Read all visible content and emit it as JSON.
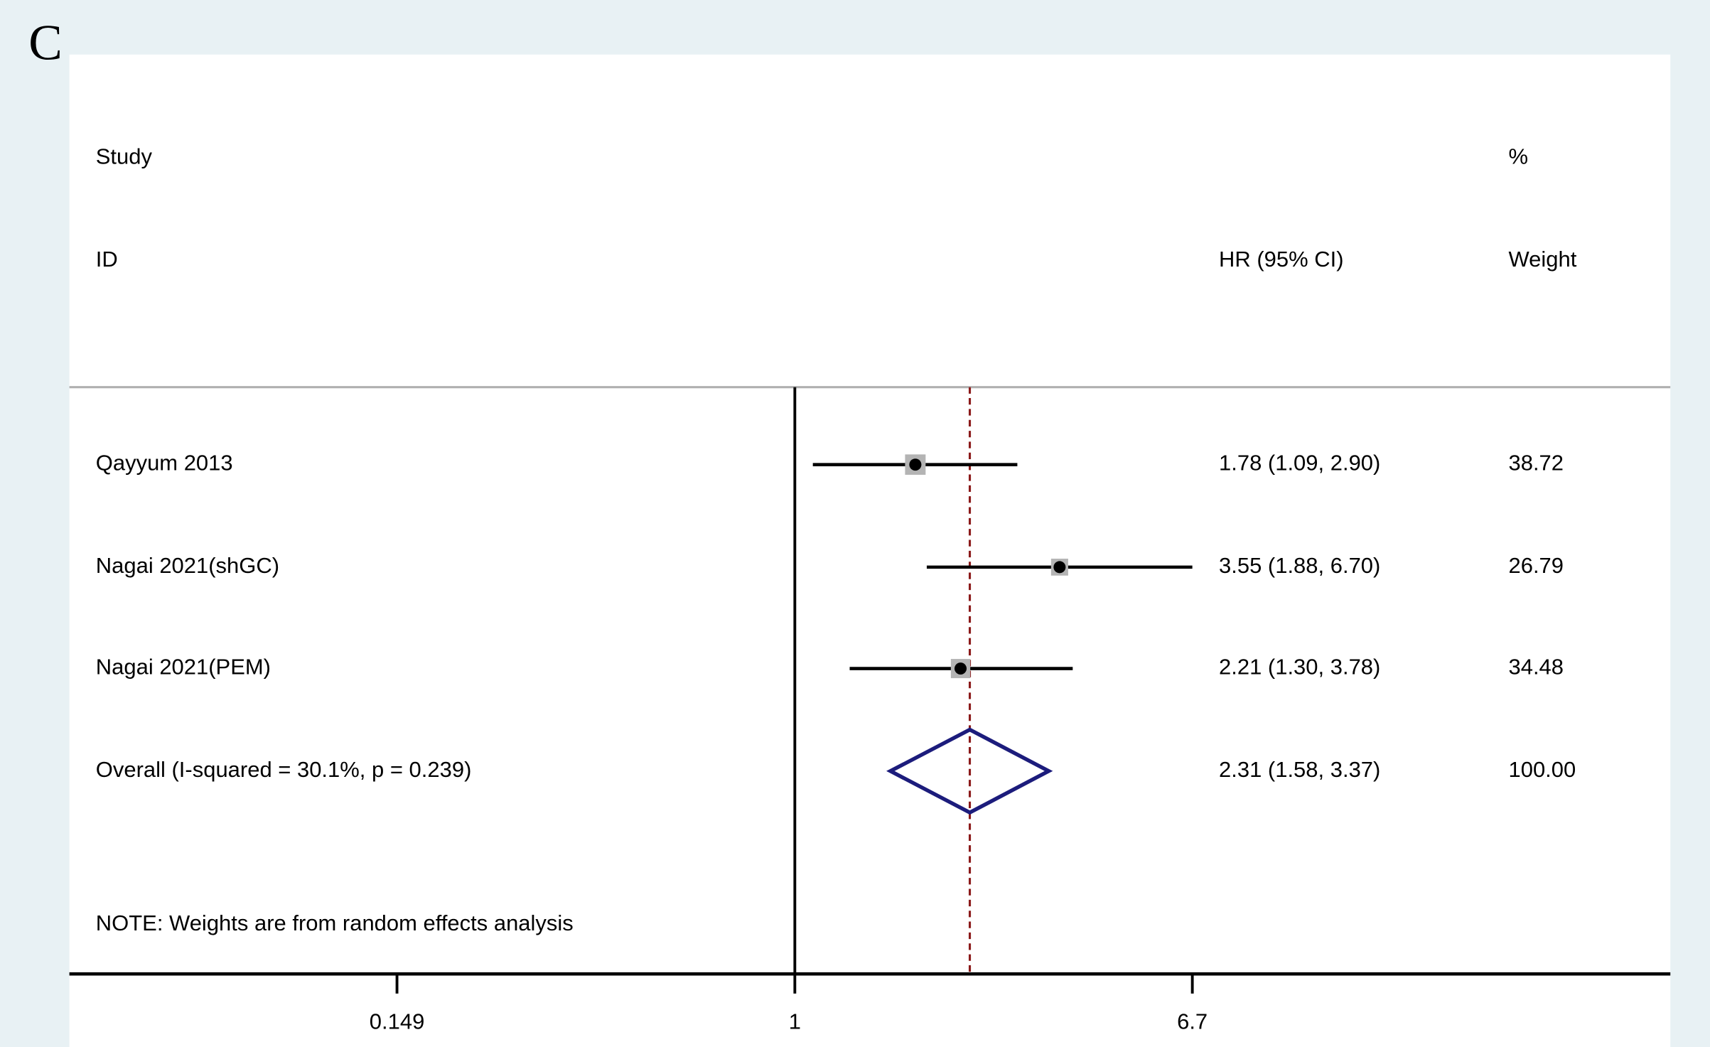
{
  "chart_data": {
    "type": "forest",
    "panel_label": "C",
    "header": {
      "study": "Study",
      "id": "ID",
      "estimate": "HR (95% CI)",
      "pct": "%",
      "weight": "Weight"
    },
    "categories": [
      "Qayyum 2013",
      "Nagai 2021(shGC)",
      "Nagai 2021(PEM)"
    ],
    "values": [
      1.78,
      3.55,
      2.21
    ],
    "lower": [
      1.09,
      1.88,
      1.3
    ],
    "upper": [
      2.9,
      6.7,
      3.78
    ],
    "value_labels": [
      "1.78 (1.09, 2.90)",
      "3.55 (1.88, 6.70)",
      "2.21 (1.30, 3.78)"
    ],
    "weights": [
      38.72,
      26.79,
      34.48
    ],
    "weight_labels": [
      "38.72",
      "26.79",
      "34.48"
    ],
    "overall": {
      "label": "Overall  (I-squared = 30.1%, p = 0.239)",
      "value": 2.31,
      "lower": 1.58,
      "upper": 3.37,
      "value_label": "2.31 (1.58, 3.37)",
      "weight": 100,
      "weight_label": "100.00"
    },
    "note": "NOTE: Weights are from random effects analysis",
    "xscale": "log",
    "xlim": [
      0.0314,
      65.3
    ],
    "xticks": [
      0.149,
      1,
      6.7
    ],
    "null_line": 1,
    "square_color": "#b4b4b4",
    "ci_color": "#000000",
    "diamond_color": "#1c1c7c",
    "overall_line_color": "#8b1a1a"
  }
}
